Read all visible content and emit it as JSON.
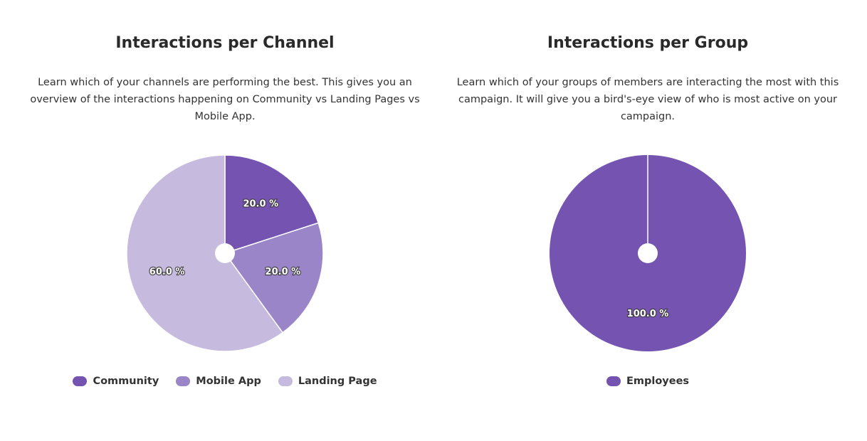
{
  "panels": [
    {
      "title": "Interactions per Channel",
      "description": "Learn which of your channels are performing the best. This gives you an overview of the interactions happening on Community vs Landing Pages vs Mobile App."
    },
    {
      "title": "Interactions per Group",
      "description": "Learn which of your groups of members are interacting the most with this campaign. It will give you a bird's-eye view of who is most active on your campaign."
    }
  ],
  "chart_data": [
    {
      "type": "pie",
      "title": "Interactions per Channel",
      "slices": [
        {
          "label": "Community",
          "value": 20.0,
          "display": "20.0 %",
          "color": "#7453b1"
        },
        {
          "label": "Mobile App",
          "value": 20.0,
          "display": "20.0 %",
          "color": "#9b85c9"
        },
        {
          "label": "Landing Page",
          "value": 60.0,
          "display": "60.0 %",
          "color": "#c6badf"
        }
      ],
      "legend_position": "bottom"
    },
    {
      "type": "pie",
      "title": "Interactions per Group",
      "slices": [
        {
          "label": "Employees",
          "value": 100.0,
          "display": "100.0 %",
          "color": "#7453b1"
        }
      ],
      "legend_position": "bottom"
    }
  ]
}
